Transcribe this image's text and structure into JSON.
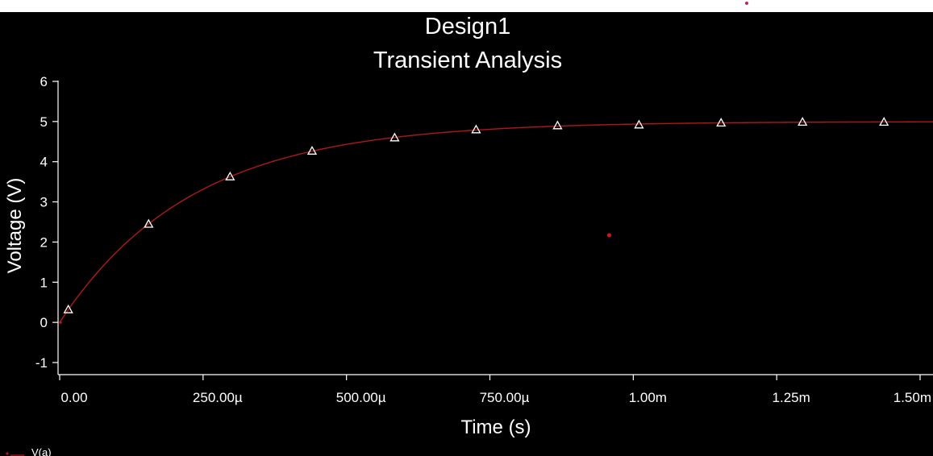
{
  "colors": {
    "background": "#000000",
    "axis": "#ffffff",
    "series": "#b01818",
    "marker": "#ffffff"
  },
  "chart_data": {
    "type": "line",
    "title": "Design1",
    "subtitle": "Transient Analysis",
    "xlabel": "Time (s)",
    "ylabel": "Voltage (V)",
    "xlim": [
      0,
      0.0015
    ],
    "ylim": [
      -1,
      6
    ],
    "x_ticks": [
      0,
      0.00025,
      0.0005,
      0.00075,
      0.001,
      0.00125,
      0.0015
    ],
    "x_tick_labels": [
      "0.00",
      "250.00µ",
      "500.00µ",
      "750.00µ",
      "1.00m",
      "1.25m",
      "1.50m"
    ],
    "y_ticks": [
      6,
      5,
      4,
      3,
      2,
      1,
      0,
      -1
    ],
    "y_tick_labels": [
      "6",
      "5",
      "4",
      "3",
      "2",
      "1",
      "0",
      "-1"
    ],
    "grid": false,
    "legend_position": "bottom-left",
    "series": [
      {
        "name": "V(a)",
        "tau": 0.00023,
        "amplitude": 5,
        "x": [
          1.5e-05,
          0.000155,
          0.000297,
          0.00044,
          0.000584,
          0.000726,
          0.000868,
          0.00101,
          0.001153,
          0.001295,
          0.001437
        ],
        "values": [
          0.32,
          2.45,
          3.63,
          4.27,
          4.6,
          4.8,
          4.9,
          4.92,
          4.97,
          4.99,
          4.99
        ]
      }
    ],
    "annotations": [
      {
        "type": "point",
        "x": 0.000958,
        "y": 2.17
      }
    ]
  }
}
